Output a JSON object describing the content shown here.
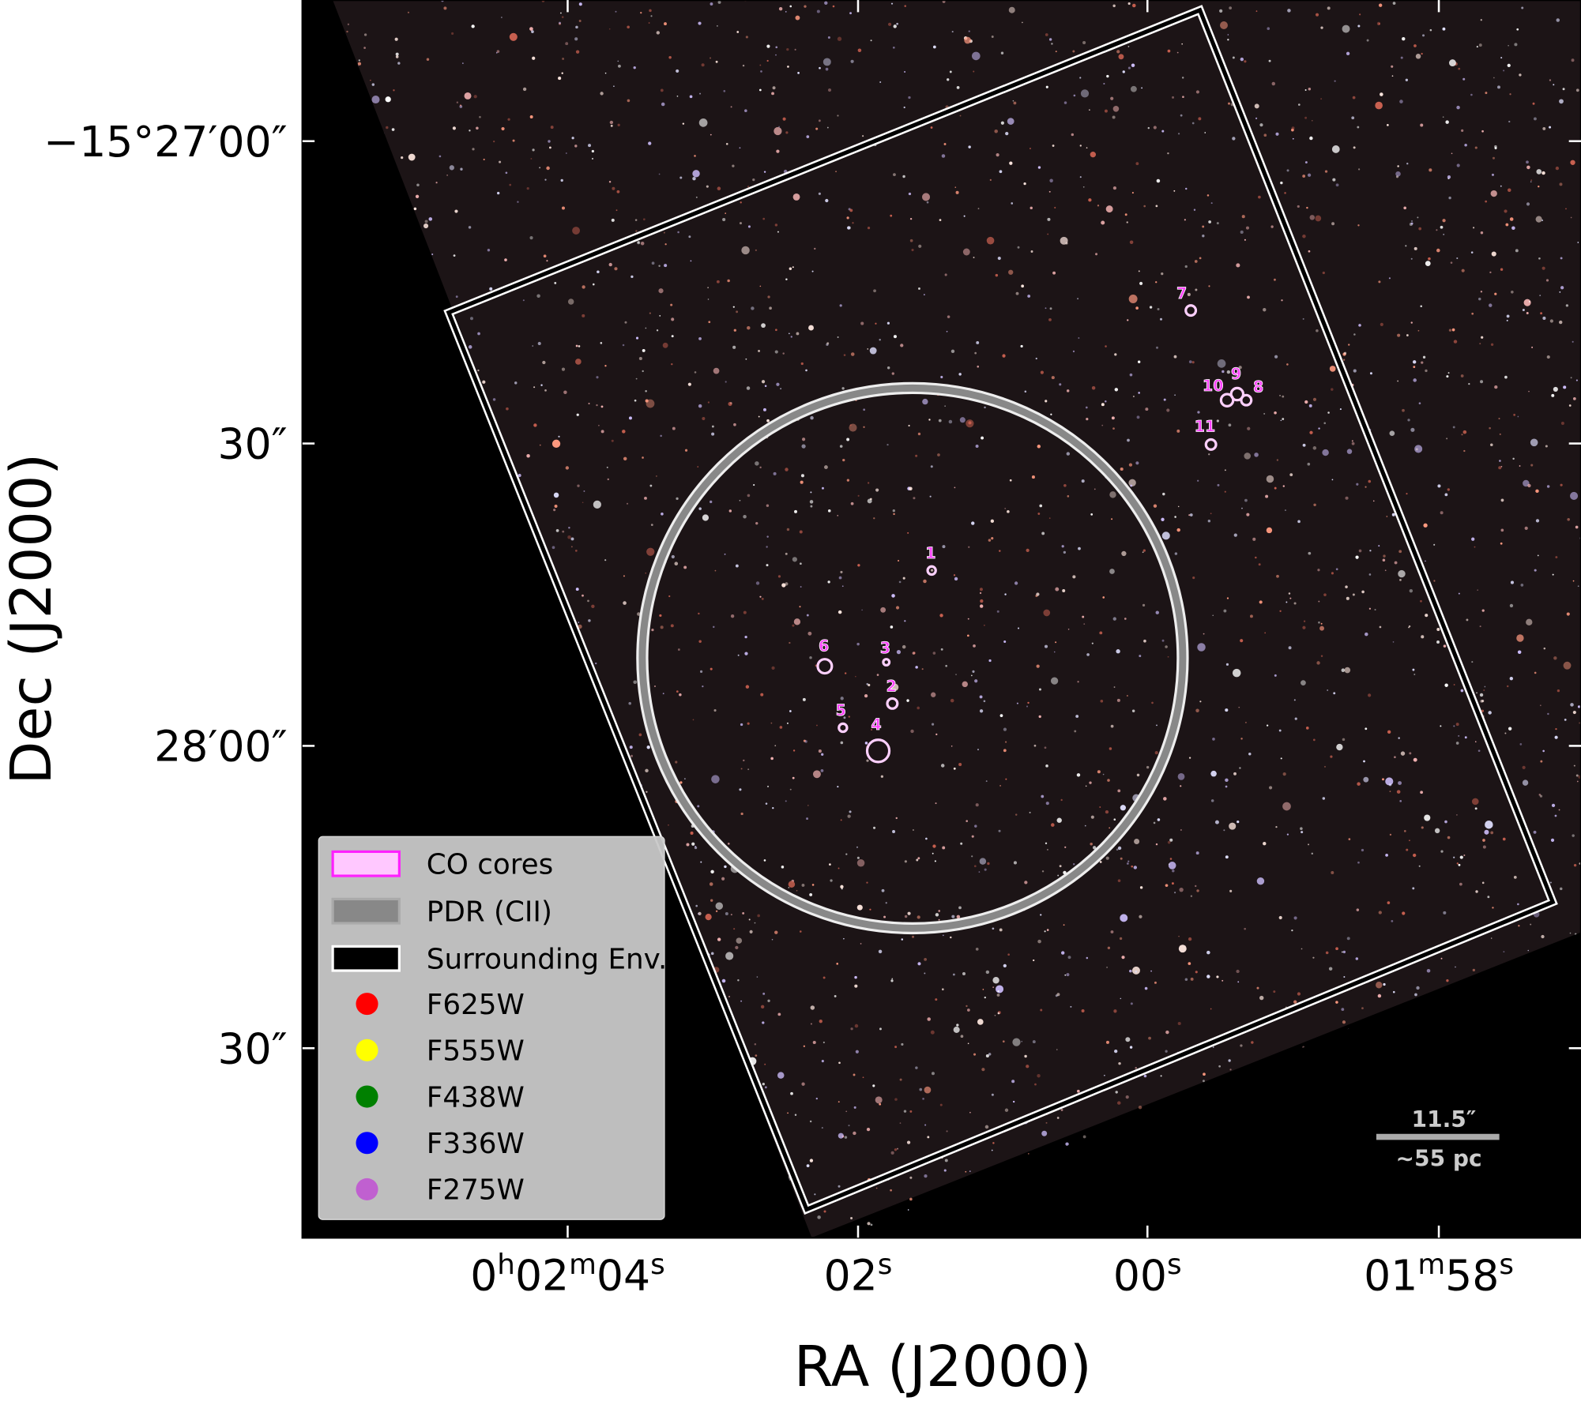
{
  "axes": {
    "x_label": "RA (J2000)",
    "y_label": "Dec (J2000)",
    "x_ticks": [
      [
        "0",
        "h",
        "02",
        "m",
        "04",
        "s"
      ],
      [
        "02",
        "s"
      ],
      [
        "00",
        "s"
      ],
      [
        "01",
        "m",
        "58",
        "s"
      ]
    ],
    "y_ticks": [
      "−15°27′00″",
      "30″",
      "28′00″",
      "30″"
    ]
  },
  "cores": [
    "1",
    "2",
    "3",
    "4",
    "5",
    "6",
    "7",
    "8",
    "9",
    "10",
    "11"
  ],
  "legend": [
    "CO cores",
    "PDR (CII)",
    "Surrounding Env.",
    "F625W",
    "F555W",
    "F438W",
    "F336W",
    "F275W"
  ],
  "scale_bar": {
    "angular": "11.5″",
    "physical": "∼55 pc"
  }
}
